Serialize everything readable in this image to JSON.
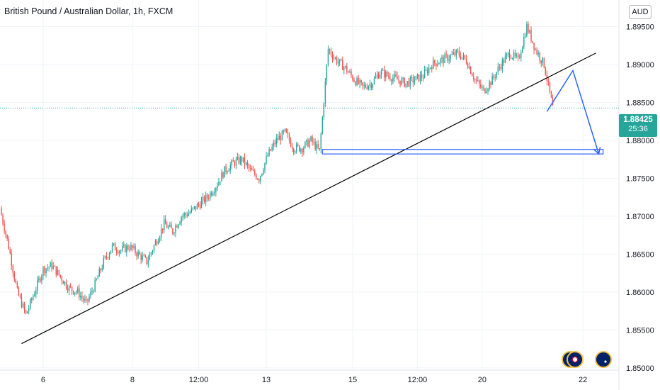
{
  "header": {
    "title": "British Pound / Australian Dollar, 1h, FXCM",
    "currency_button": "AUD"
  },
  "price_tag": {
    "price": "1.88425",
    "countdown": "25:36",
    "color": "#26a69a"
  },
  "colors": {
    "up": "#26a69a",
    "down": "#ef5350",
    "trendline": "#000000",
    "projection": "#2962ff"
  },
  "event_icons": [
    "uk-flag-icon",
    "uk-flag-icon",
    "australia-flag-icon"
  ],
  "chart_data": {
    "type": "candlestick",
    "symbol": "GBPAUD",
    "y_ticks": [
      "1.89500",
      "1.89000",
      "1.88500",
      "1.88000",
      "1.87500",
      "1.87000",
      "1.86500",
      "1.86000",
      "1.85500",
      "1.85000"
    ],
    "x_ticks": [
      "6",
      "8",
      "12:00",
      "13",
      "15",
      "12:00",
      "20",
      "22"
    ],
    "ylim": [
      1.8497,
      1.8985
    ],
    "current_price": 1.88425,
    "series": [
      {
        "name": "close",
        "points": [
          [
            0,
            1.871
          ],
          [
            6,
            1.866
          ],
          [
            12,
            1.86
          ],
          [
            18,
            1.857
          ],
          [
            24,
            1.86
          ],
          [
            30,
            1.863
          ],
          [
            36,
            1.8635
          ],
          [
            42,
            1.862
          ],
          [
            48,
            1.8605
          ],
          [
            54,
            1.86
          ],
          [
            60,
            1.8585
          ],
          [
            66,
            1.861
          ],
          [
            72,
            1.864
          ],
          [
            78,
            1.866
          ],
          [
            84,
            1.8655
          ],
          [
            90,
            1.866
          ],
          [
            96,
            1.865
          ],
          [
            102,
            1.864
          ],
          [
            108,
            1.8665
          ],
          [
            114,
            1.869
          ],
          [
            120,
            1.868
          ],
          [
            126,
            1.87
          ],
          [
            132,
            1.8705
          ],
          [
            138,
            1.8715
          ],
          [
            144,
            1.8725
          ],
          [
            150,
            1.874
          ],
          [
            156,
            1.876
          ],
          [
            162,
            1.877
          ],
          [
            168,
            1.8775
          ],
          [
            174,
            1.876
          ],
          [
            180,
            1.875
          ],
          [
            186,
            1.878
          ],
          [
            192,
            1.88
          ],
          [
            198,
            1.881
          ],
          [
            204,
            1.879
          ],
          [
            210,
            1.879
          ],
          [
            216,
            1.88
          ],
          [
            222,
            1.8785
          ],
          [
            228,
            1.892
          ],
          [
            234,
            1.8905
          ],
          [
            240,
            1.8895
          ],
          [
            246,
            1.888
          ],
          [
            252,
            1.887
          ],
          [
            258,
            1.8875
          ],
          [
            264,
            1.889
          ],
          [
            270,
            1.8885
          ],
          [
            276,
            1.888
          ],
          [
            282,
            1.8875
          ],
          [
            288,
            1.888
          ],
          [
            294,
            1.8885
          ],
          [
            300,
            1.89
          ],
          [
            306,
            1.8905
          ],
          [
            312,
            1.891
          ],
          [
            318,
            1.8915
          ],
          [
            324,
            1.8905
          ],
          [
            330,
            1.888
          ],
          [
            336,
            1.8865
          ],
          [
            342,
            1.888
          ],
          [
            348,
            1.89
          ],
          [
            354,
            1.8915
          ],
          [
            360,
            1.8905
          ],
          [
            366,
            1.895
          ],
          [
            372,
            1.892
          ],
          [
            378,
            1.89
          ],
          [
            384,
            1.8843
          ]
        ]
      }
    ],
    "trendline": {
      "from": [
        15,
        1.8532
      ],
      "to": [
        414,
        1.8915
      ]
    },
    "support_zone": [
      1.8782,
      1.8788
    ],
    "projection": [
      [
        380,
        1.8838
      ],
      [
        398,
        1.8892
      ],
      [
        416,
        1.8782
      ]
    ]
  }
}
